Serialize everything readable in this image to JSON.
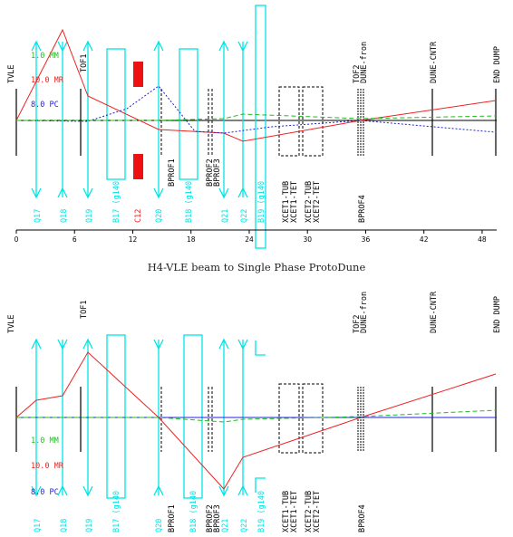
{
  "caption": "H4-VLE beam to Single Phase ProtoDune",
  "x_axis_ticks": [
    "0",
    "6",
    "12",
    "18",
    "24",
    "30",
    "36",
    "42",
    "48"
  ],
  "colors": {
    "quad": "#00e5e5",
    "dipole": "#00e5e5",
    "collimator": "#ee1111",
    "mm": "#22bb22",
    "mr": "#ee2222",
    "pc": "#2222dd",
    "black": "#000000"
  },
  "panel_top": {
    "legend": [
      {
        "text": "1.0 MM",
        "color": "#22bb22"
      },
      {
        "text": "10.0 MR",
        "color": "#ee2222"
      },
      {
        "text": "8.0 PC",
        "color": "#2222dd"
      }
    ],
    "top_labels": [
      "TVLE",
      "TOF1",
      "TOF2",
      "DUNE-fron",
      "DUNE-CNTR",
      "END DUMP"
    ],
    "bottom_labels": [
      "Q17",
      "Q18",
      "Q19",
      "B17 (g140",
      "C12",
      "Q20",
      "B18 (g140",
      "Q21",
      "Q22",
      "B19 (g140",
      "BPROF1",
      "BPROF2",
      "BPROF3",
      "XCET1-TUB",
      "XCET1-TET",
      "XCET2-TUB",
      "XCET2-TET",
      "BPROF4"
    ]
  },
  "panel_bottom": {
    "legend": [
      {
        "text": "1.0 MM",
        "color": "#22bb22"
      },
      {
        "text": "10.0 MR",
        "color": "#ee2222"
      },
      {
        "text": "8.0 PC",
        "color": "#2222dd"
      }
    ],
    "top_labels": [
      "TVLE",
      "TOF1",
      "TOF2",
      "DUNE-fron",
      "DUNE-CNTR",
      "END DUMP"
    ],
    "bottom_labels": [
      "Q17",
      "Q18",
      "Q19",
      "B17 (g140",
      "Q20",
      "B18 (g140",
      "Q21",
      "Q22",
      "B19 (g140",
      "BPROF1",
      "BPROF2",
      "BPROF3",
      "XCET1-TUB",
      "XCET1-TET",
      "XCET2-TUB",
      "XCET2-TET",
      "BPROF4"
    ]
  }
}
